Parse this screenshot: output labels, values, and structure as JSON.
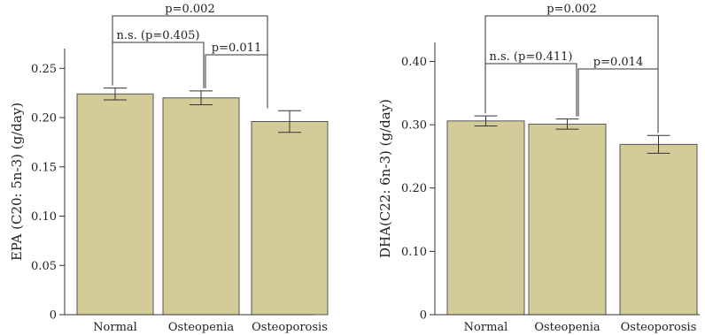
{
  "colors": {
    "bar_fill": "#d3cc98",
    "bar_stroke": "#555555",
    "axis": "#333333",
    "text": "#222222"
  },
  "chart_data": [
    {
      "type": "bar",
      "categories": [
        "Normal",
        "Osteopenia",
        "Osteoporosis"
      ],
      "values": [
        0.224,
        0.22,
        0.196
      ],
      "error": [
        0.006,
        0.007,
        0.011
      ],
      "ylabel": "EPA (C20: 5n-3) (g/day)",
      "ylim": [
        0,
        0.27
      ],
      "yticks": [
        0,
        0.05,
        0.1,
        0.15,
        0.2,
        0.25
      ],
      "ytick_labels": [
        "0",
        "0.05",
        "0.10",
        "0.15",
        "0.20",
        "0.25"
      ],
      "grid": false,
      "annotations": [
        {
          "from": 0,
          "to": 2,
          "text": "p=0.002",
          "level": 0
        },
        {
          "from": 0,
          "to": 1,
          "text": "n.s. (p=0.405)",
          "level": 1
        },
        {
          "from": 1,
          "to": 2,
          "text": "p=0.011",
          "level": 2
        }
      ]
    },
    {
      "type": "bar",
      "categories": [
        "Normal",
        "Osteopenia",
        "Osteoporosis"
      ],
      "values": [
        0.306,
        0.301,
        0.269
      ],
      "error": [
        0.008,
        0.008,
        0.014
      ],
      "ylabel": "DHA(C22: 6n-3) (g/day)",
      "ylim": [
        0,
        0.43
      ],
      "yticks": [
        0,
        0.1,
        0.2,
        0.3,
        0.4
      ],
      "ytick_labels": [
        "0",
        "0.10",
        "0.20",
        "0.30",
        "0.40"
      ],
      "grid": false,
      "annotations": [
        {
          "from": 0,
          "to": 2,
          "text": "p=0.002",
          "level": 0
        },
        {
          "from": 0,
          "to": 1,
          "text": "n.s. (p=0.411)",
          "level": 1
        },
        {
          "from": 1,
          "to": 2,
          "text": "p=0.014",
          "level": 2
        }
      ]
    }
  ]
}
